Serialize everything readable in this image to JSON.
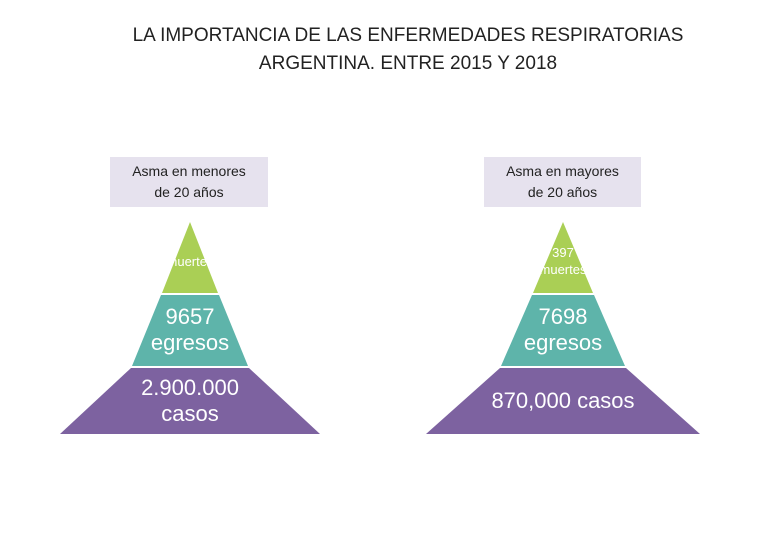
{
  "title": {
    "line1": "LA IMPORTANCIA DE LAS ENFERMEDADES RESPIRATORIAS",
    "line2": "ARGENTINA. ENTRE 2015 Y 2018"
  },
  "colors": {
    "top": "#aacf55",
    "middle": "#5eb4aa",
    "bottom": "#7d62a0",
    "label_bg": "#e6e2ee"
  },
  "pyramids": [
    {
      "label_line1": "Asma en menores",
      "label_line2": "de 20 años",
      "top_line1": "",
      "top_line2": "muertes",
      "middle_line1": "9657",
      "middle_line2": "egresos",
      "bottom_line1": "2.900.000",
      "bottom_line2": "casos"
    },
    {
      "label_line1": "Asma en mayores",
      "label_line2": "de 20 años",
      "top_line1": "397",
      "top_line2": "muertes",
      "middle_line1": "7698",
      "middle_line2": "egresos",
      "bottom_line1": "870,000 casos",
      "bottom_line2": ""
    }
  ]
}
